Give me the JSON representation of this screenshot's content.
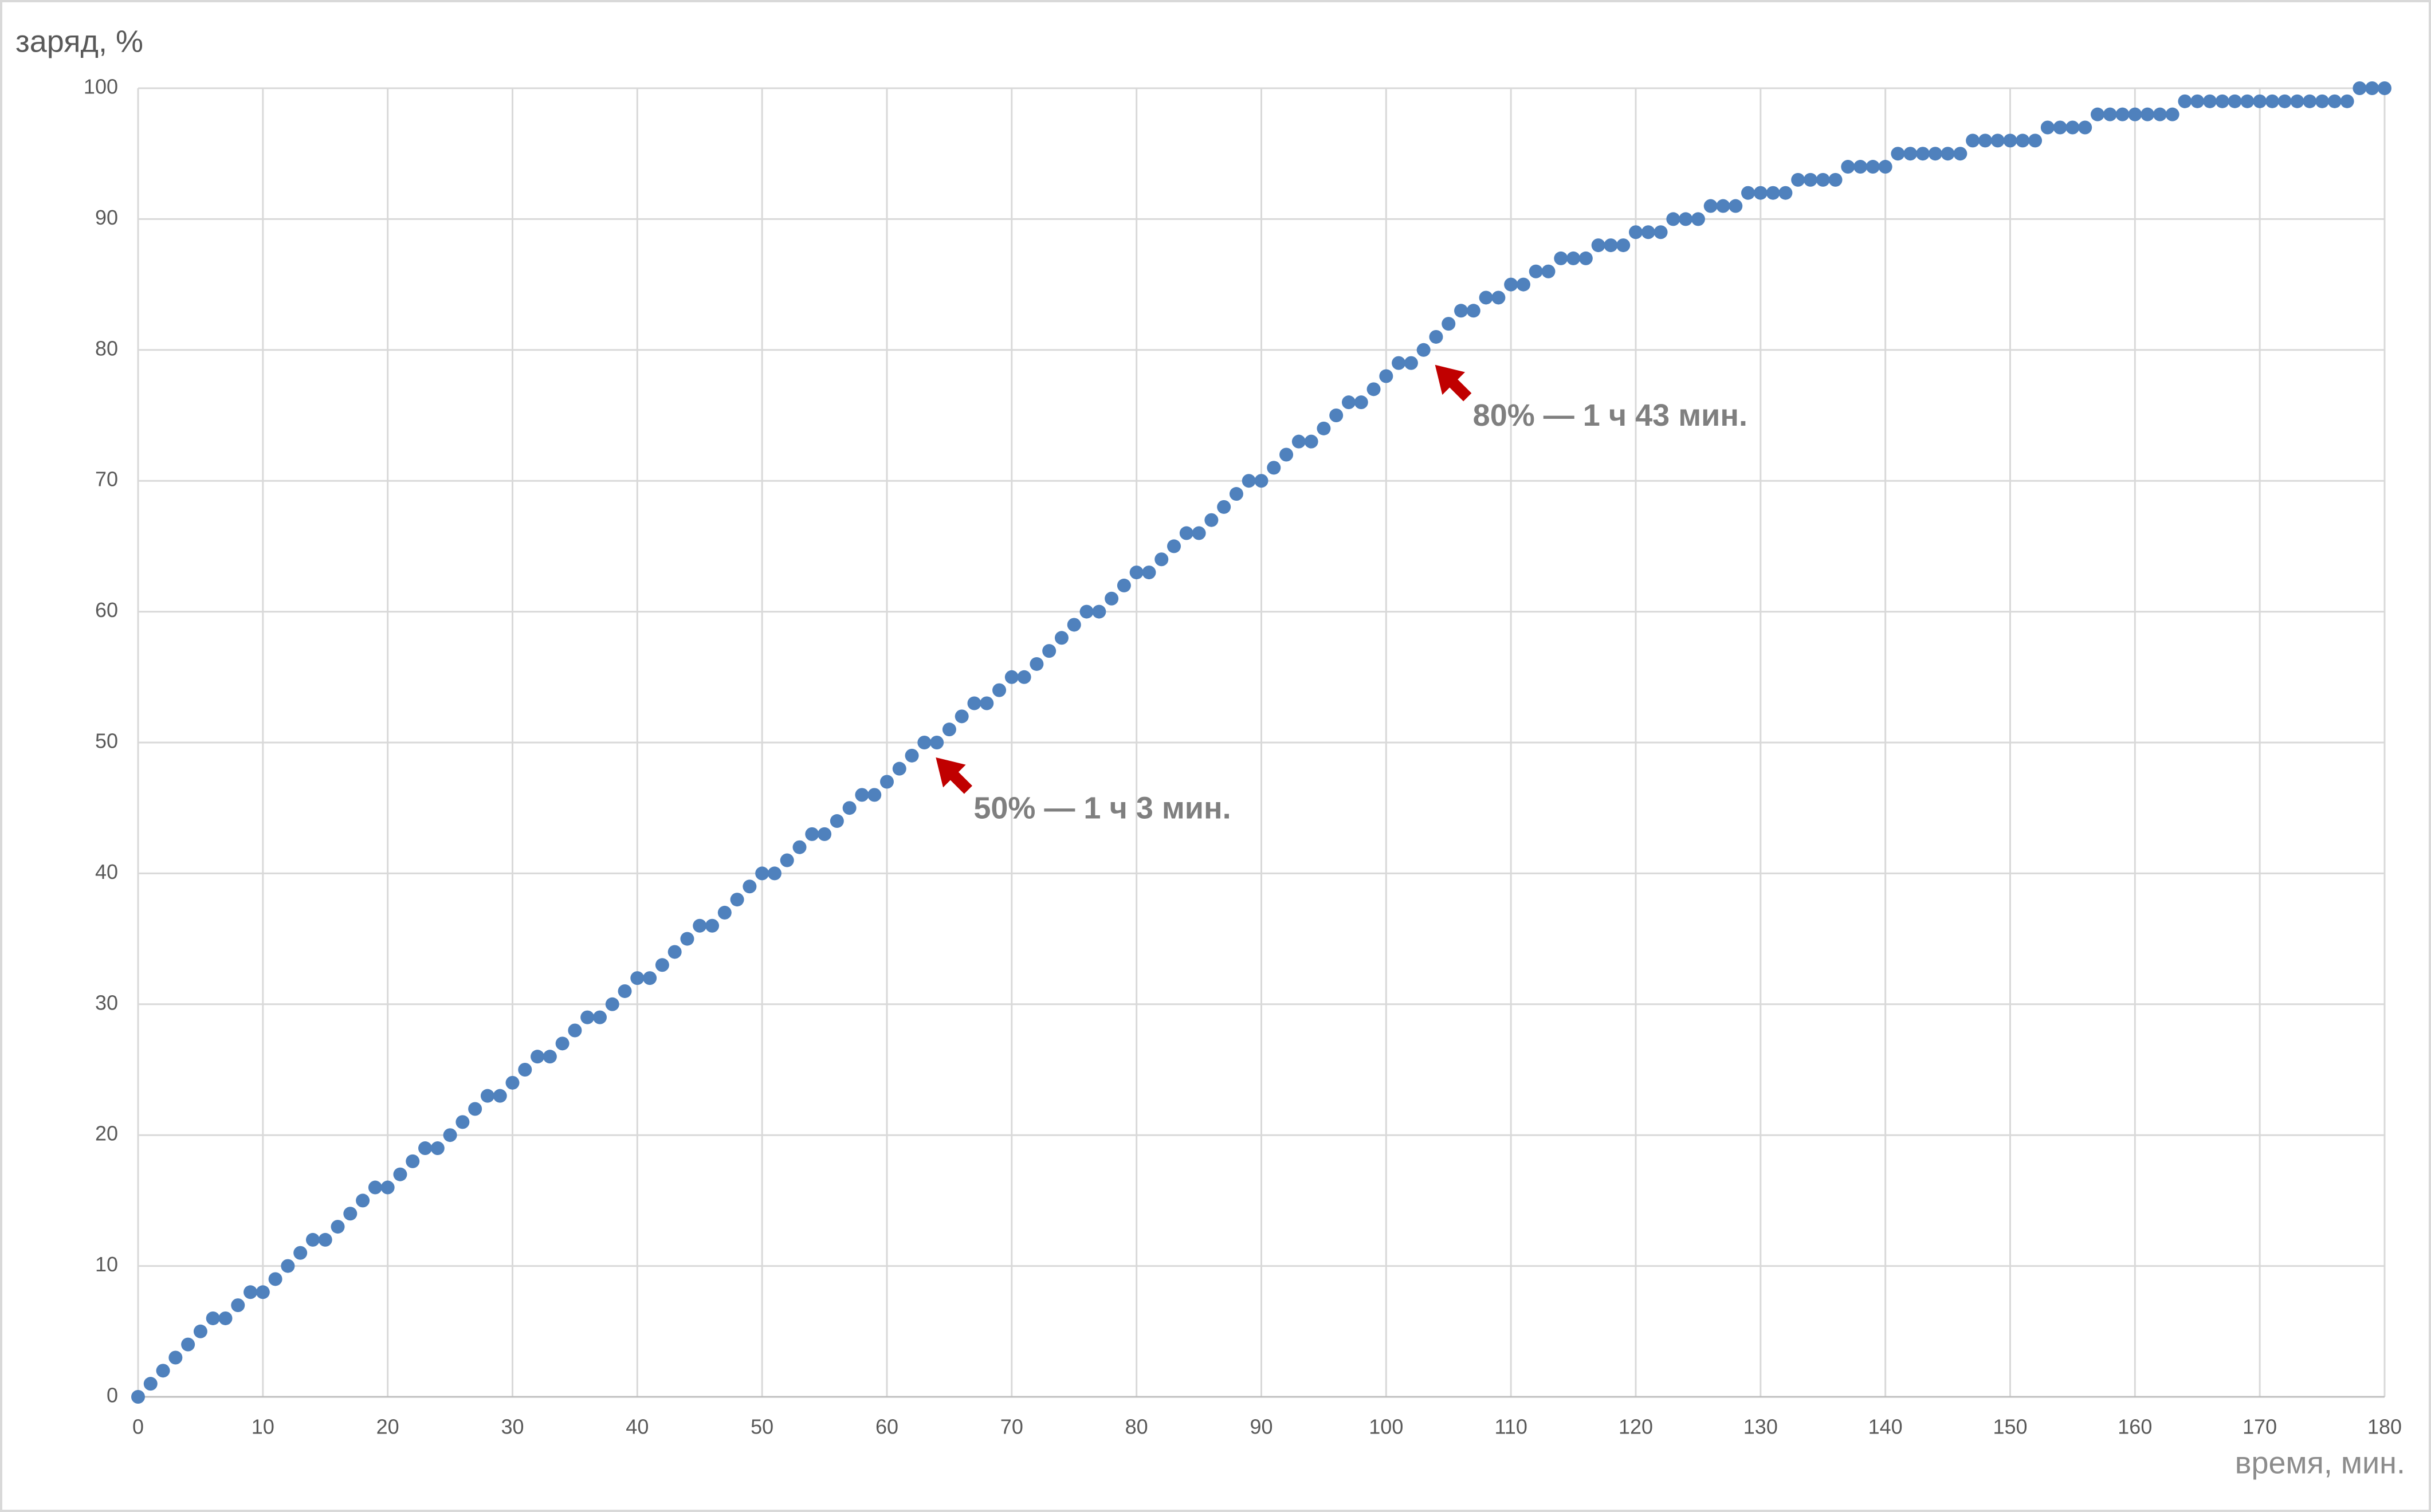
{
  "chart_data": {
    "type": "scatter",
    "y_label": "заряд, %",
    "x_label": "время, мин.",
    "color": "#4f81bd",
    "grid": true,
    "x": [
      0,
      1,
      2,
      3,
      4,
      5,
      6,
      7,
      8,
      9,
      10,
      11,
      12,
      13,
      14,
      15,
      16,
      17,
      18,
      19,
      20,
      21,
      22,
      23,
      24,
      25,
      26,
      27,
      28,
      29,
      30,
      31,
      32,
      33,
      34,
      35,
      36,
      37,
      38,
      39,
      40,
      41,
      42,
      43,
      44,
      45,
      46,
      47,
      48,
      49,
      50,
      51,
      52,
      53,
      54,
      55,
      56,
      57,
      58,
      59,
      60,
      61,
      62,
      63,
      64,
      65,
      66,
      67,
      68,
      69,
      70,
      71,
      72,
      73,
      74,
      75,
      76,
      77,
      78,
      79,
      80,
      81,
      82,
      83,
      84,
      85,
      86,
      87,
      88,
      89,
      90,
      91,
      92,
      93,
      94,
      95,
      96,
      97,
      98,
      99,
      100,
      101,
      102,
      103,
      104,
      105,
      106,
      107,
      108,
      109,
      110,
      111,
      112,
      113,
      114,
      115,
      116,
      117,
      118,
      119,
      120,
      121,
      122,
      123,
      124,
      125,
      126,
      127,
      128,
      129,
      130,
      131,
      132,
      133,
      134,
      135,
      136,
      137,
      138,
      139,
      140,
      141,
      142,
      143,
      144,
      145,
      146,
      147,
      148,
      149,
      150,
      151,
      152,
      153,
      154,
      155,
      156,
      157,
      158,
      159,
      160,
      161,
      162,
      163,
      164,
      165,
      166,
      167,
      168,
      169,
      170,
      171,
      172,
      173,
      174,
      175,
      176,
      177,
      178,
      179,
      180
    ],
    "values": [
      0,
      1,
      2,
      3,
      4,
      5,
      6,
      6,
      7,
      8,
      8,
      9,
      10,
      11,
      12,
      12,
      13,
      14,
      15,
      16,
      16,
      17,
      18,
      19,
      19,
      20,
      21,
      22,
      23,
      23,
      24,
      25,
      26,
      26,
      27,
      28,
      29,
      29,
      30,
      31,
      32,
      32,
      33,
      34,
      35,
      36,
      36,
      37,
      38,
      39,
      40,
      40,
      41,
      42,
      43,
      43,
      44,
      45,
      46,
      46,
      47,
      48,
      49,
      50,
      50,
      51,
      52,
      53,
      53,
      54,
      55,
      55,
      56,
      57,
      58,
      59,
      60,
      60,
      61,
      62,
      63,
      63,
      64,
      65,
      66,
      66,
      67,
      68,
      69,
      70,
      70,
      71,
      72,
      73,
      73,
      74,
      75,
      76,
      76,
      77,
      78,
      79,
      79,
      80,
      81,
      82,
      83,
      83,
      84,
      84,
      85,
      85,
      86,
      86,
      87,
      87,
      87,
      88,
      88,
      88,
      89,
      89,
      89,
      90,
      90,
      90,
      91,
      91,
      91,
      92,
      92,
      92,
      92,
      93,
      93,
      93,
      93,
      94,
      94,
      94,
      94,
      95,
      95,
      95,
      95,
      95,
      95,
      96,
      96,
      96,
      96,
      96,
      96,
      97,
      97,
      97,
      97,
      98,
      98,
      98,
      98,
      98,
      98,
      98,
      99,
      99,
      99,
      99,
      99,
      99,
      99,
      99,
      99,
      99,
      99,
      99,
      99,
      99,
      100,
      100,
      100
    ],
    "xlim": [
      0,
      180
    ],
    "ylim": [
      0,
      100
    ],
    "xticks": [
      0,
      10,
      20,
      30,
      40,
      50,
      60,
      70,
      80,
      90,
      100,
      110,
      120,
      130,
      140,
      150,
      160,
      170,
      180
    ],
    "yticks": [
      0,
      10,
      20,
      30,
      40,
      50,
      60,
      70,
      80,
      90,
      100
    ],
    "annotations": [
      {
        "text": "50% — 1 ч 3 мин.",
        "x": 63,
        "y": 50,
        "color": "#c00000"
      },
      {
        "text": "80% — 1 ч 43 мин.",
        "x": 103,
        "y": 80,
        "color": "#c00000"
      }
    ]
  }
}
